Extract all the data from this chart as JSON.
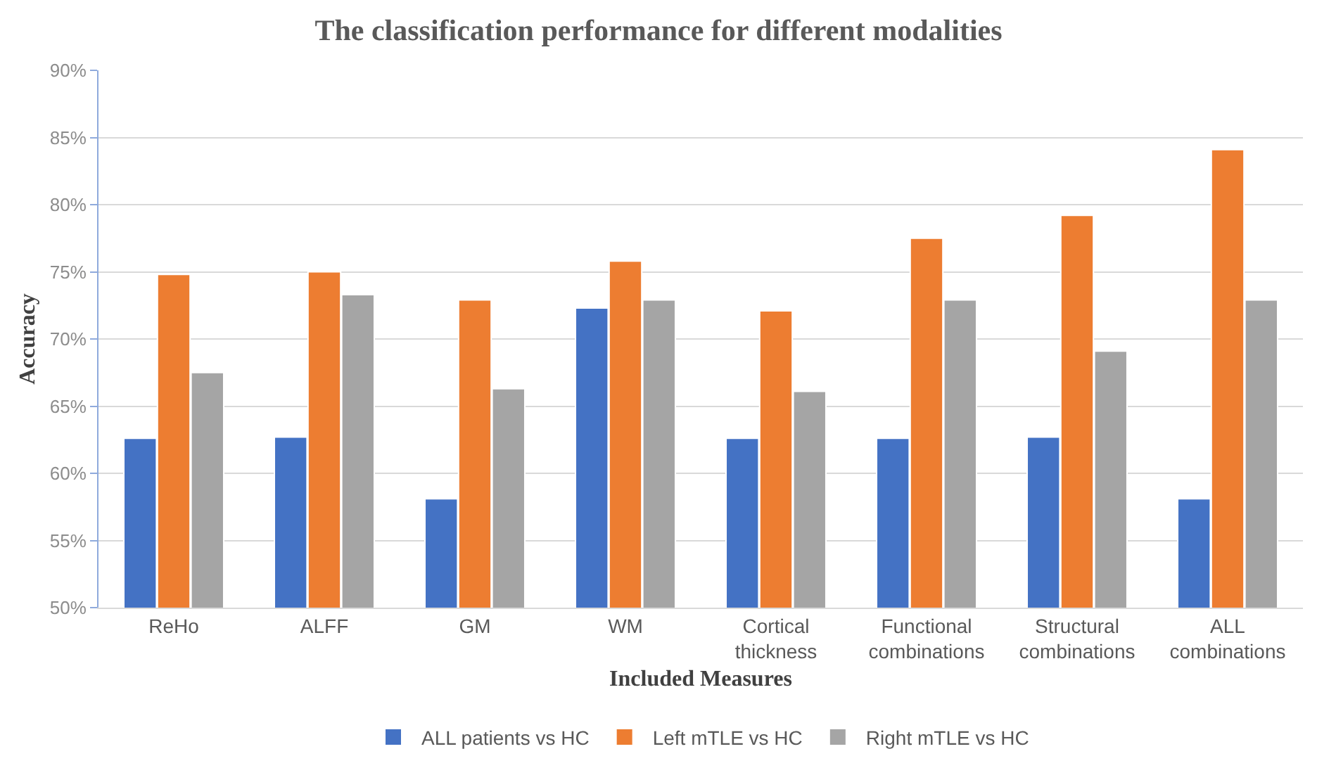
{
  "chart_data": {
    "type": "bar",
    "title": "The classification performance for different modalities",
    "xlabel": "Included Measures",
    "ylabel": "Accuracy",
    "categories": [
      "ReHo",
      "ALFF",
      "GM",
      "WM",
      "Cortical\nthickness",
      "Functional\ncombinations",
      "Structural\ncombinations",
      "ALL\ncombinations"
    ],
    "series": [
      {
        "name": "ALL patients vs HC",
        "color": "#4472c4",
        "values": [
          62.6,
          62.7,
          58.1,
          72.3,
          62.6,
          62.6,
          62.7,
          58.1
        ]
      },
      {
        "name": "Left mTLE vs HC",
        "color": "#ed7d31",
        "values": [
          74.8,
          75.0,
          72.9,
          75.8,
          72.1,
          77.5,
          79.2,
          84.1
        ]
      },
      {
        "name": "Right mTLE vs HC",
        "color": "#a5a5a5",
        "values": [
          67.5,
          73.3,
          66.3,
          72.9,
          66.1,
          72.9,
          69.1,
          72.9
        ]
      }
    ],
    "ylim": [
      50,
      90
    ],
    "yticks": [
      {
        "value": 50,
        "label": "50%"
      },
      {
        "value": 55,
        "label": "55%"
      },
      {
        "value": 60,
        "label": "60%"
      },
      {
        "value": 65,
        "label": "65%"
      },
      {
        "value": 70,
        "label": "70%"
      },
      {
        "value": 75,
        "label": "75%"
      },
      {
        "value": 80,
        "label": "80%"
      },
      {
        "value": 85,
        "label": "85%"
      },
      {
        "value": 90,
        "label": "90%"
      }
    ],
    "grid": "y",
    "legend": "bottom"
  }
}
